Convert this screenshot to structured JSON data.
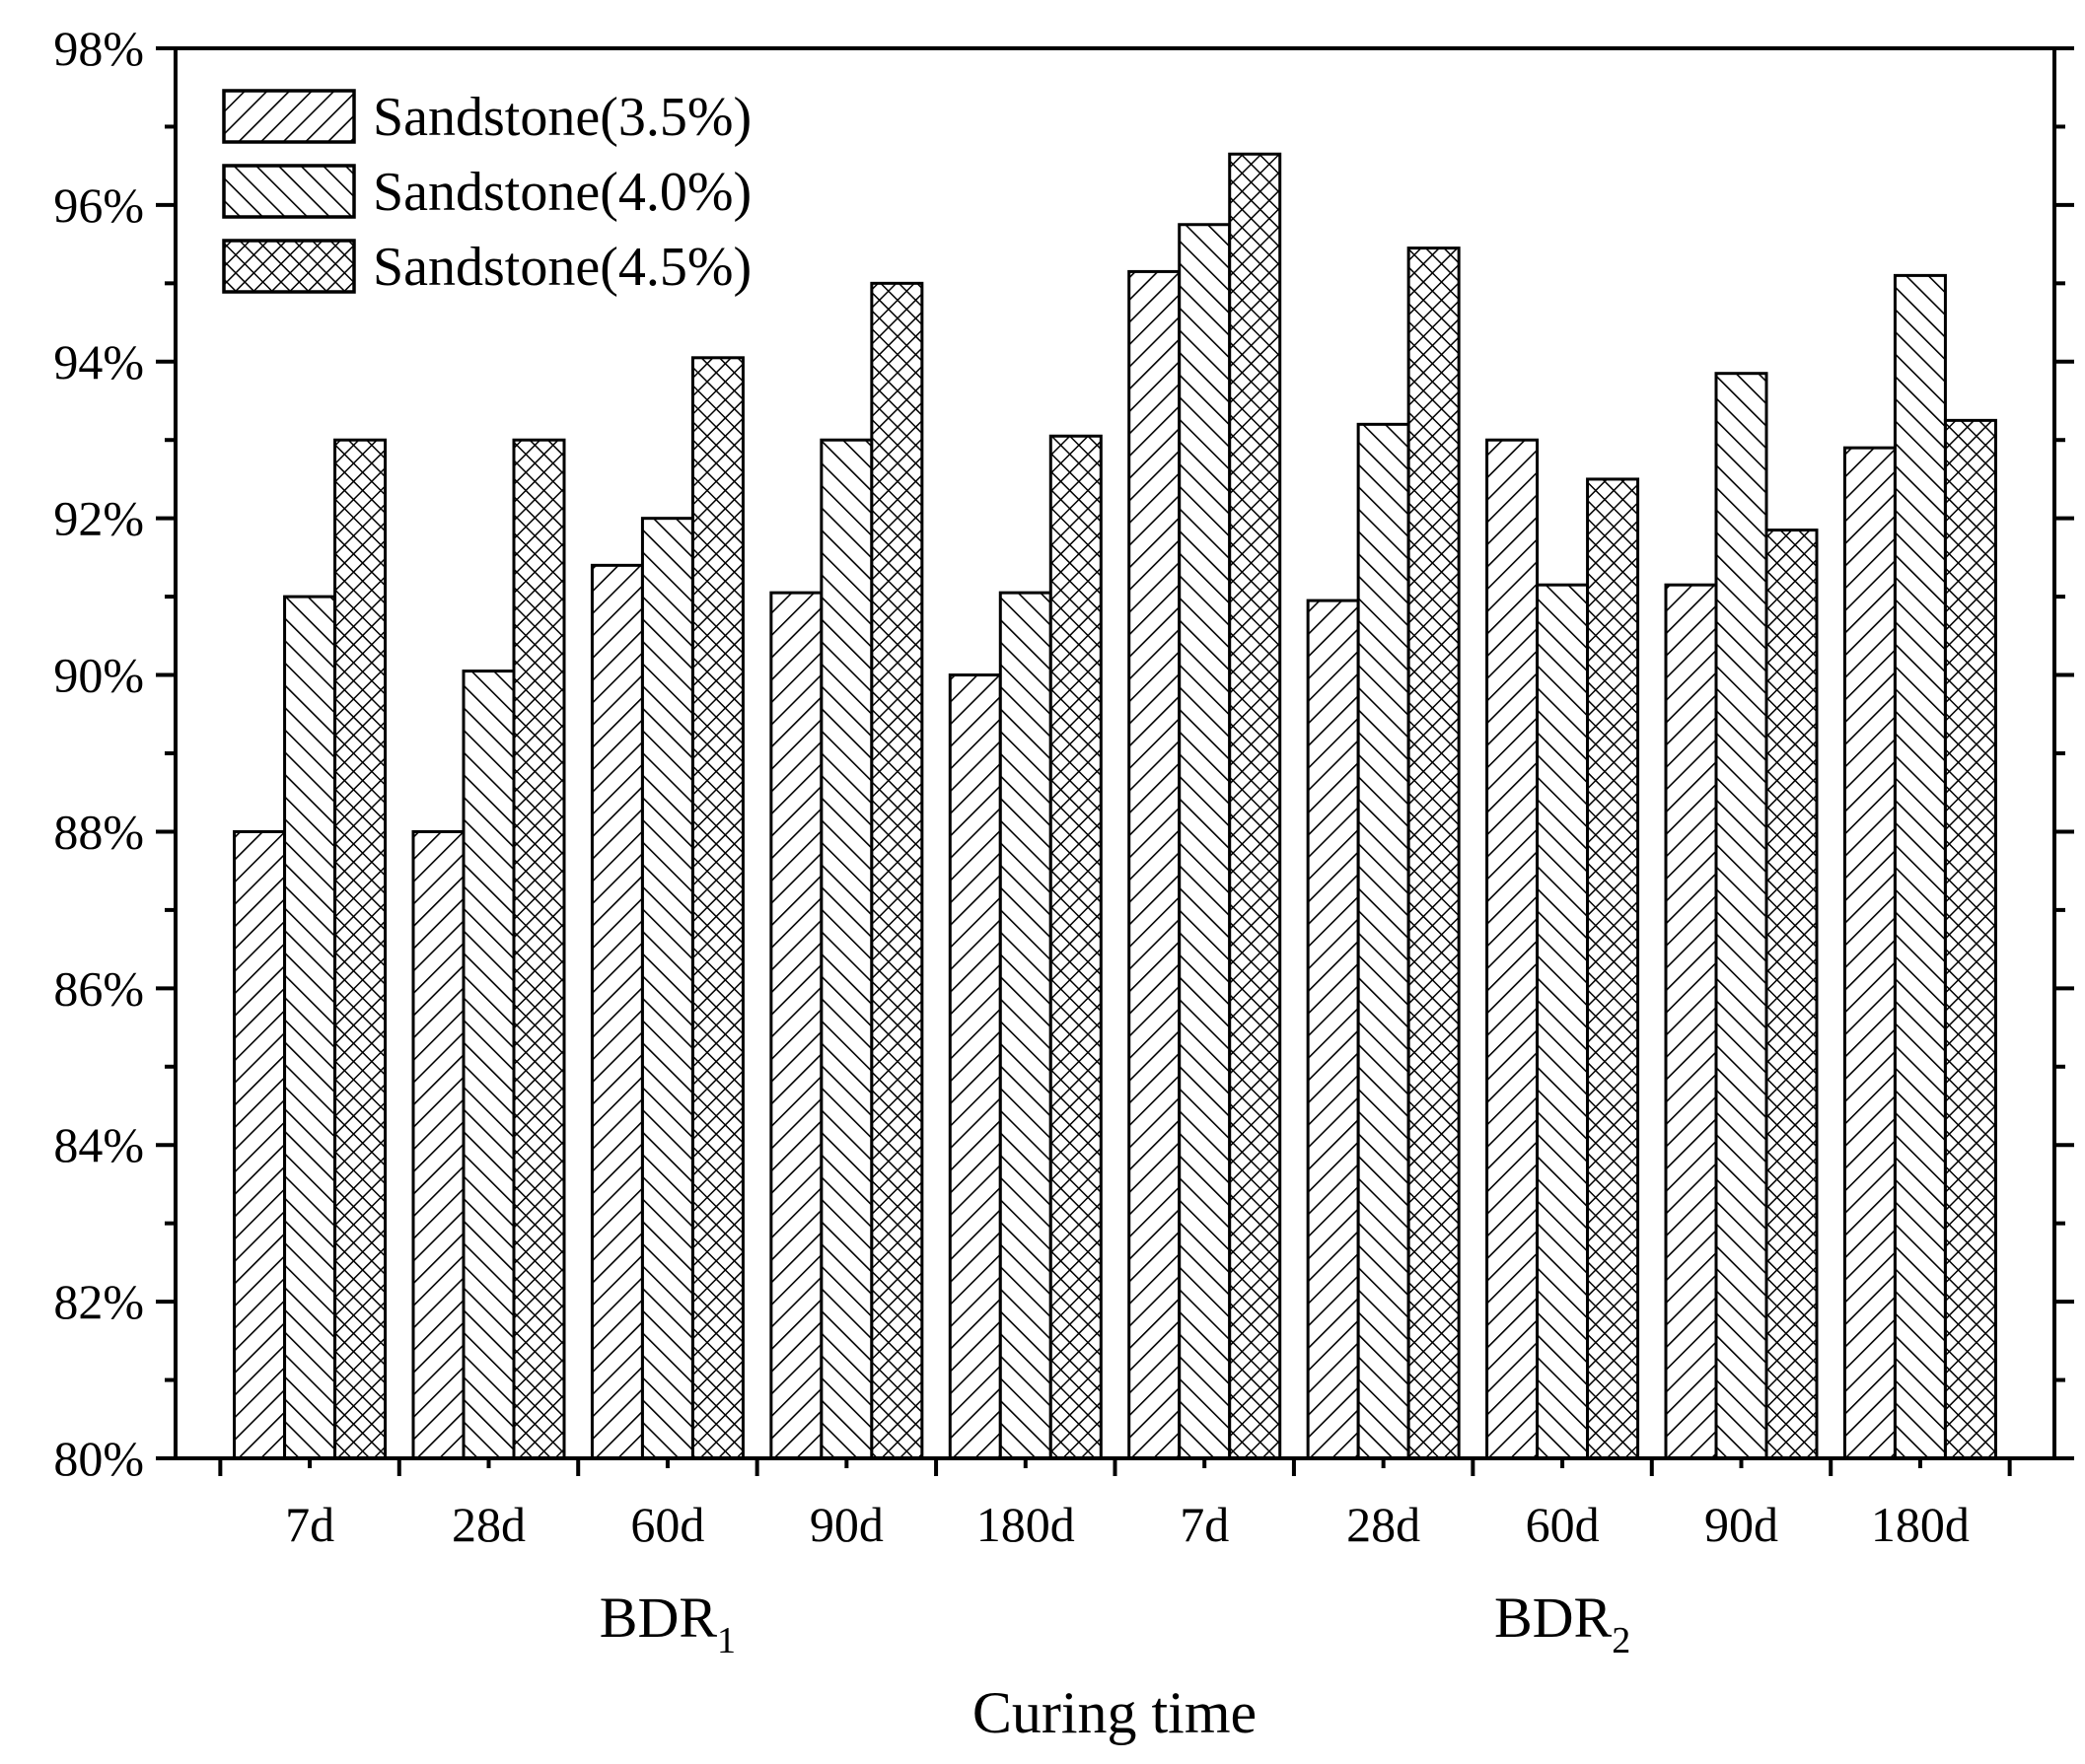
{
  "chart_data": {
    "type": "bar",
    "title": "",
    "xlabel": "Curing time",
    "ylabel": "",
    "ylim": [
      80,
      98
    ],
    "yticks": [
      80,
      82,
      84,
      86,
      88,
      90,
      92,
      94,
      96,
      98
    ],
    "ytick_labels": [
      "80%",
      "82%",
      "84%",
      "86%",
      "88%",
      "90%",
      "92%",
      "94%",
      "96%",
      "98%"
    ],
    "grid": false,
    "legend_position": "top-left",
    "categories": [
      "7d",
      "28d",
      "60d",
      "90d",
      "180d",
      "7d",
      "28d",
      "60d",
      "90d",
      "180d"
    ],
    "groups": [
      {
        "name": "BDR",
        "subscript": "1",
        "categories": [
          "7d",
          "28d",
          "60d",
          "90d",
          "180d"
        ]
      },
      {
        "name": "BDR",
        "subscript": "2",
        "categories": [
          "7d",
          "28d",
          "60d",
          "90d",
          "180d"
        ]
      }
    ],
    "series": [
      {
        "name": "Sandstone(3.5%)",
        "pattern": "hatch-forward",
        "values": [
          88.0,
          88.0,
          91.4,
          91.05,
          90.0,
          95.15,
          90.95,
          93.0,
          91.15,
          92.9
        ]
      },
      {
        "name": "Sandstone(4.0%)",
        "pattern": "hatch-back",
        "values": [
          91.0,
          90.05,
          92.0,
          93.0,
          91.05,
          95.75,
          93.2,
          91.15,
          93.85,
          95.1
        ]
      },
      {
        "name": "Sandstone(4.5%)",
        "pattern": "crosshatch",
        "values": [
          93.0,
          93.0,
          94.05,
          95.0,
          93.05,
          96.65,
          95.45,
          92.5,
          91.85,
          93.25
        ]
      }
    ]
  }
}
